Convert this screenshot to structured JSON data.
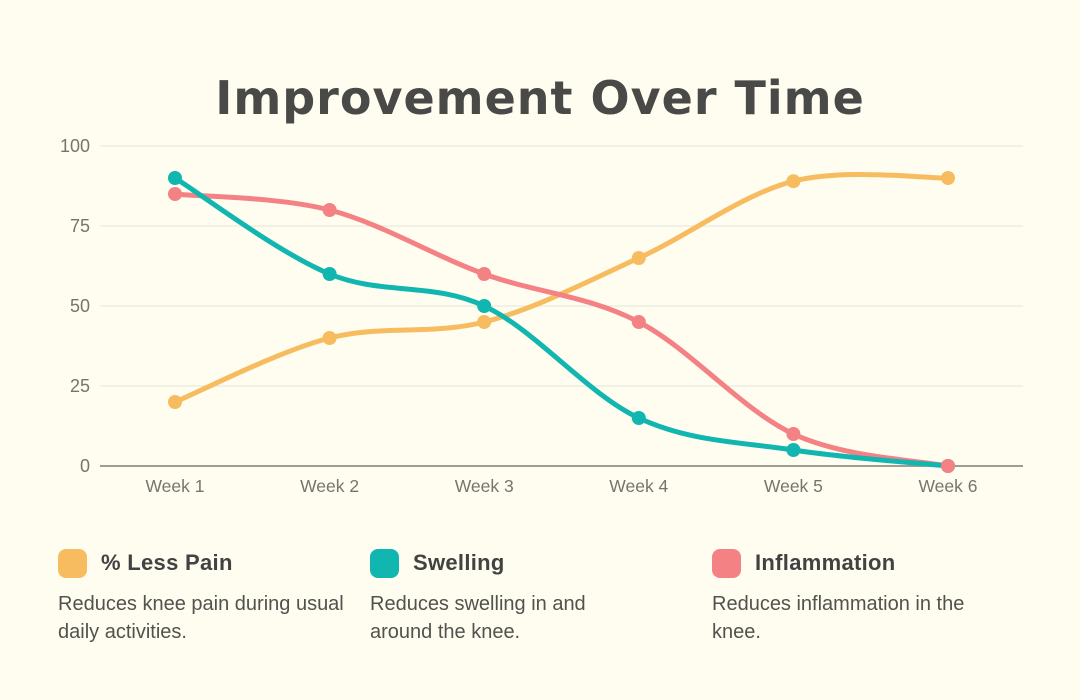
{
  "title": "Improvement Over Time",
  "colors": {
    "background": "#FEFDF0",
    "title_text": "#494947",
    "grid_line": "#E5E5DB",
    "axis_line": "#8F8F89",
    "axis_text": "#75756E",
    "legend_label_text": "#424242",
    "legend_description_text": "#52524E"
  },
  "chart_data": {
    "type": "line",
    "title": "Improvement Over Time",
    "categories": [
      "Week 1",
      "Week 2",
      "Week 3",
      "Week 4",
      "Week 5",
      "Week 6"
    ],
    "series": [
      {
        "name": "% Less Pain",
        "color": "#F7BC5F",
        "values": [
          20,
          40,
          45,
          65,
          89,
          90
        ],
        "description": "Reduces knee pain during usual daily activities."
      },
      {
        "name": "Swelling",
        "color": "#12B6B0",
        "values": [
          90,
          60,
          50,
          15,
          5,
          0
        ],
        "description": "Reduces swelling in and around the knee."
      },
      {
        "name": "Inflammation",
        "color": "#F48285",
        "values": [
          85,
          80,
          60,
          45,
          10,
          0
        ],
        "description": "Reduces inflammation in the knee."
      }
    ],
    "xlabel": "",
    "ylabel": "",
    "y_ticks": [
      0,
      25,
      50,
      75,
      100
    ],
    "ylim": [
      0,
      100
    ],
    "grid": true,
    "smooth": true,
    "markers": true,
    "legend_position": "bottom"
  }
}
